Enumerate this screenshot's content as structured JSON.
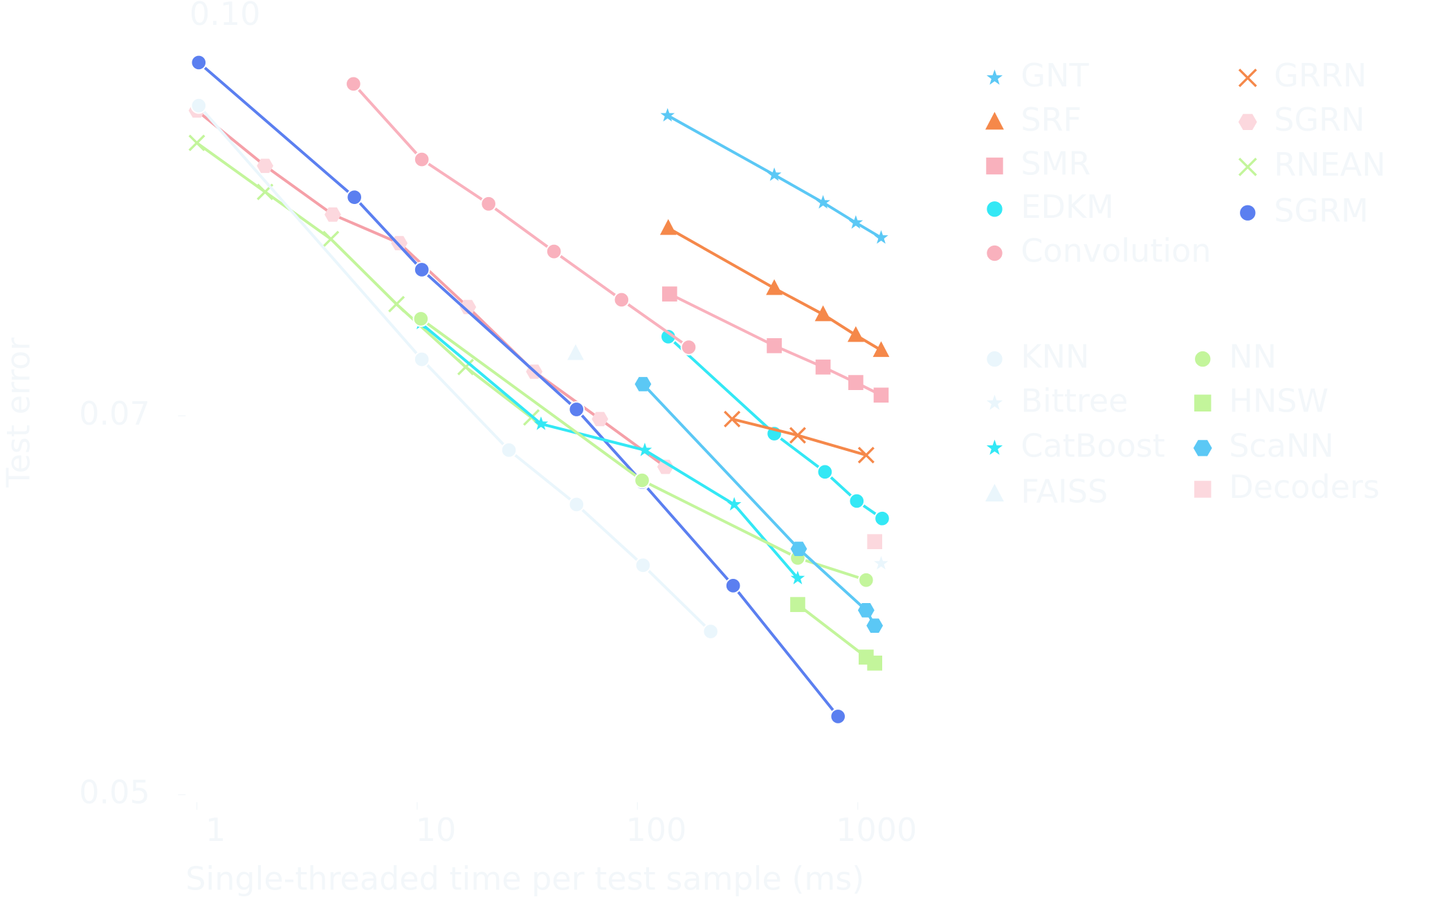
{
  "chart_data": {
    "type": "line",
    "title": "0.10",
    "x_label": "Single-threaded time per test sample (ms)",
    "y_label": "Test error",
    "xscale": "log",
    "yscale": "log",
    "xlim": [
      1,
      1500
    ],
    "ylim": [
      0.05,
      0.1
    ],
    "xticks": [
      1,
      10,
      100,
      1000
    ],
    "yticks": [
      0.05,
      0.07
    ],
    "series": [
      {
        "name": "GNT",
        "color": "#5bc8f5",
        "marker": "star",
        "x": [
          137,
          418,
          696,
          980,
          1277
        ],
        "values": [
          0.0914,
          0.0867,
          0.0846,
          0.0831,
          0.082
        ]
      },
      {
        "name": "SRF",
        "color": "#f5884a",
        "marker": "triangle",
        "x": [
          138,
          418,
          696,
          980,
          1277
        ],
        "values": [
          0.0827,
          0.0784,
          0.0766,
          0.0752,
          0.0742
        ]
      },
      {
        "name": "SMR",
        "color": "#f9b1bd",
        "marker": "square",
        "x": [
          140,
          418,
          696,
          980,
          1277
        ],
        "values": [
          0.078,
          0.0745,
          0.0731,
          0.0721,
          0.0713
        ]
      },
      {
        "name": "EDKM",
        "color": "#33e8f5",
        "marker": "circle",
        "x": [
          138,
          418,
          710,
          990,
          1291
        ],
        "values": [
          0.0751,
          0.0689,
          0.0666,
          0.0649,
          0.0639
        ]
      },
      {
        "name": "Convolution",
        "color": "#f9b1bd",
        "marker": "circle",
        "x": [
          5.14,
          10.5,
          21.1,
          41.8,
          84.7,
          171
        ],
        "values": [
          0.094,
          0.0879,
          0.0845,
          0.081,
          0.0776,
          0.0744
        ]
      },
      {
        "name": "GRRN",
        "color": "#f5884a",
        "marker": "x",
        "x": [
          269,
          534,
          1092
        ],
        "values": [
          0.0698,
          0.0688,
          0.0676
        ]
      },
      {
        "name": "SGRN",
        "color": "#fcd8de",
        "line_color": "#f5a0a8",
        "marker": "hexagon",
        "x": [
          1,
          2.04,
          4.14,
          8.3,
          17,
          34,
          67.6,
          134
        ],
        "values": [
          0.0918,
          0.0874,
          0.0837,
          0.0816,
          0.0771,
          0.0728,
          0.0698,
          0.0669
        ]
      },
      {
        "name": "RNEAN",
        "color": "#c3f59b",
        "marker": "x",
        "x": [
          1,
          2.04,
          4.06,
          8.06,
          16.6,
          33
        ],
        "values": [
          0.0892,
          0.0854,
          0.0819,
          0.0773,
          0.0731,
          0.0699
        ]
      },
      {
        "name": "SGRM",
        "color": "#5b7ff0",
        "marker": "circle",
        "x": [
          1.02,
          5.19,
          10.5,
          52.9,
          105,
          272,
          814
        ],
        "values": [
          0.0958,
          0.085,
          0.0797,
          0.0704,
          0.066,
          0.0602,
          0.0536
        ]
      },
      {
        "name": "KNN",
        "color": "#eaf6fc",
        "marker": "circle",
        "x": [
          1.02,
          10.5,
          26.1,
          52.9,
          106,
          215
        ],
        "values": [
          0.0922,
          0.0736,
          0.0679,
          0.0647,
          0.0613,
          0.0578
        ]
      },
      {
        "name": "Bittree",
        "color": "#eaf6fc",
        "marker": "star",
        "x": [
          1277
        ],
        "values": [
          0.0614
        ]
      },
      {
        "name": "CatBoost",
        "color": "#33e8f5",
        "marker": "star",
        "x": [
          10.4,
          36.5,
          108,
          275,
          534
        ],
        "values": [
          0.076,
          0.0695,
          0.0679,
          0.0647,
          0.0606
        ]
      },
      {
        "name": "FAISS",
        "color": "#eaf6fc",
        "marker": "triangle",
        "x": [
          52.4
        ],
        "values": [
          0.074
        ]
      },
      {
        "name": "NN",
        "color": "#c3f59b",
        "marker": "circle",
        "x": [
          10.4,
          105,
          534,
          1092
        ],
        "values": [
          0.0763,
          0.0661,
          0.0617,
          0.0605
        ]
      },
      {
        "name": "HNSW",
        "color": "#c3f59b",
        "marker": "square",
        "x": [
          534,
          1092,
          1194
        ],
        "values": [
          0.0592,
          0.0565,
          0.0562
        ]
      },
      {
        "name": "ScaNN",
        "color": "#5bc8f5",
        "marker": "hexagon",
        "x": [
          106,
          540,
          1092,
          1194
        ],
        "values": [
          0.072,
          0.0622,
          0.0589,
          0.0581
        ]
      },
      {
        "name": "Decoders",
        "color": "#fcd8de",
        "marker": "square",
        "x": [
          1194
        ],
        "values": [
          0.0626
        ]
      }
    ]
  }
}
